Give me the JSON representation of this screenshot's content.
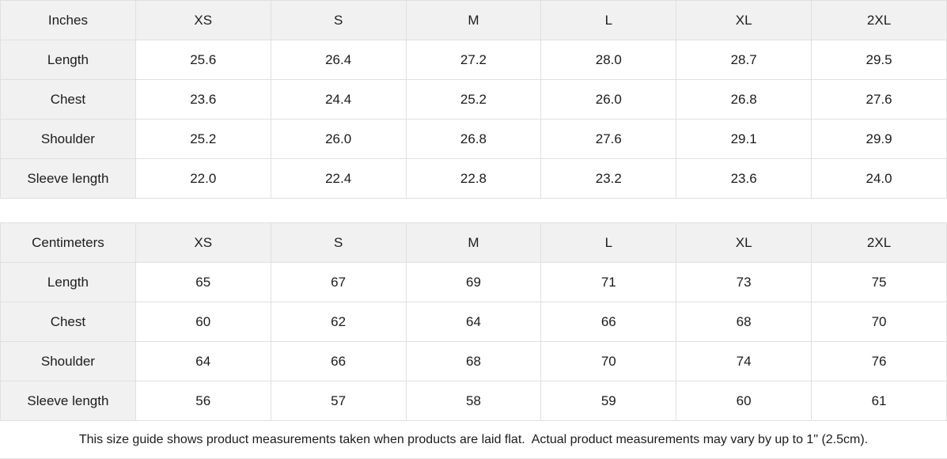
{
  "colors": {
    "header_bg": "#f1f1f1",
    "border": "#e0e0e0",
    "text": "#1c1c1e",
    "cell_bg": "#ffffff"
  },
  "tables": [
    {
      "name": "inches",
      "unit_label": "Inches",
      "sizes": [
        "XS",
        "S",
        "M",
        "L",
        "XL",
        "2XL"
      ],
      "rows": [
        {
          "label": "Length",
          "values": [
            "25.6",
            "26.4",
            "27.2",
            "28.0",
            "28.7",
            "29.5"
          ]
        },
        {
          "label": "Chest",
          "values": [
            "23.6",
            "24.4",
            "25.2",
            "26.0",
            "26.8",
            "27.6"
          ]
        },
        {
          "label": "Shoulder",
          "values": [
            "25.2",
            "26.0",
            "26.8",
            "27.6",
            "29.1",
            "29.9"
          ]
        },
        {
          "label": "Sleeve length",
          "values": [
            "22.0",
            "22.4",
            "22.8",
            "23.2",
            "23.6",
            "24.0"
          ]
        }
      ]
    },
    {
      "name": "centimeters",
      "unit_label": "Centimeters",
      "sizes": [
        "XS",
        "S",
        "M",
        "L",
        "XL",
        "2XL"
      ],
      "rows": [
        {
          "label": "Length",
          "values": [
            "65",
            "67",
            "69",
            "71",
            "73",
            "75"
          ]
        },
        {
          "label": "Chest",
          "values": [
            "60",
            "62",
            "64",
            "66",
            "68",
            "70"
          ]
        },
        {
          "label": "Shoulder",
          "values": [
            "64",
            "66",
            "68",
            "70",
            "74",
            "76"
          ]
        },
        {
          "label": "Sleeve length",
          "values": [
            "56",
            "57",
            "58",
            "59",
            "60",
            "61"
          ]
        }
      ]
    }
  ],
  "footer": {
    "note": "This size guide shows product measurements taken when products are laid flat.  Actual product measurements may vary by up to 1\" (2.5cm)."
  }
}
